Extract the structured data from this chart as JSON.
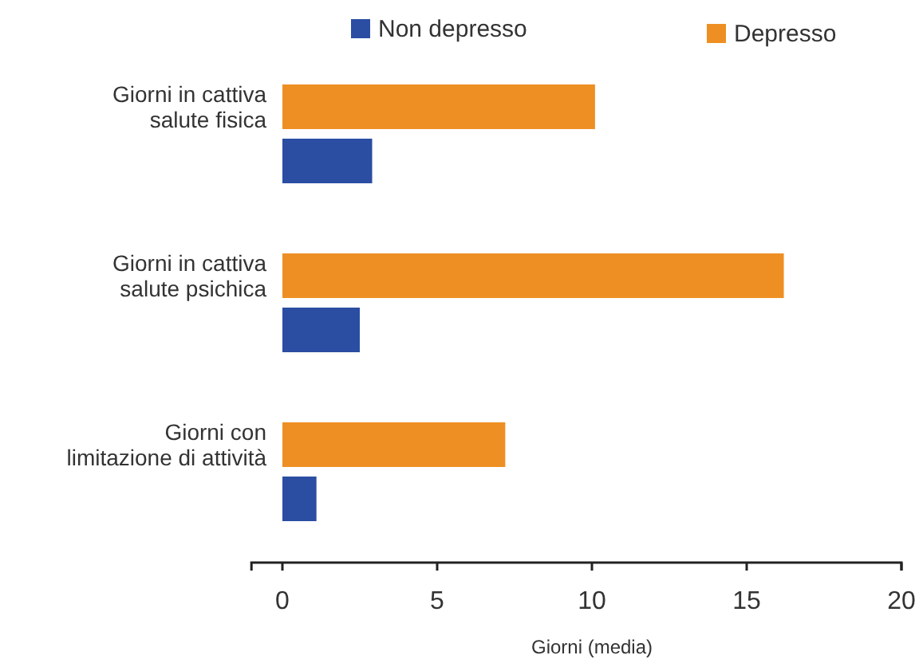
{
  "chart_data": {
    "type": "bar",
    "orientation": "horizontal",
    "xlabel": "Giorni (media)",
    "categories": [
      "Giorni in cattiva\nsalute fisica",
      "Giorni in cattiva\nsalute psichica",
      "Giorni con\nlimitazione di attività"
    ],
    "series": [
      {
        "name": "Non depresso",
        "color": "#2b4ea3",
        "values": [
          2.9,
          2.5,
          1.1
        ]
      },
      {
        "name": "Depresso",
        "color": "#ee8f23",
        "values": [
          10.1,
          16.2,
          7.2
        ]
      }
    ],
    "xlim": [
      -1,
      20
    ],
    "xticks": [
      0,
      5,
      10,
      15,
      20
    ],
    "grid": false,
    "legend": "top"
  }
}
